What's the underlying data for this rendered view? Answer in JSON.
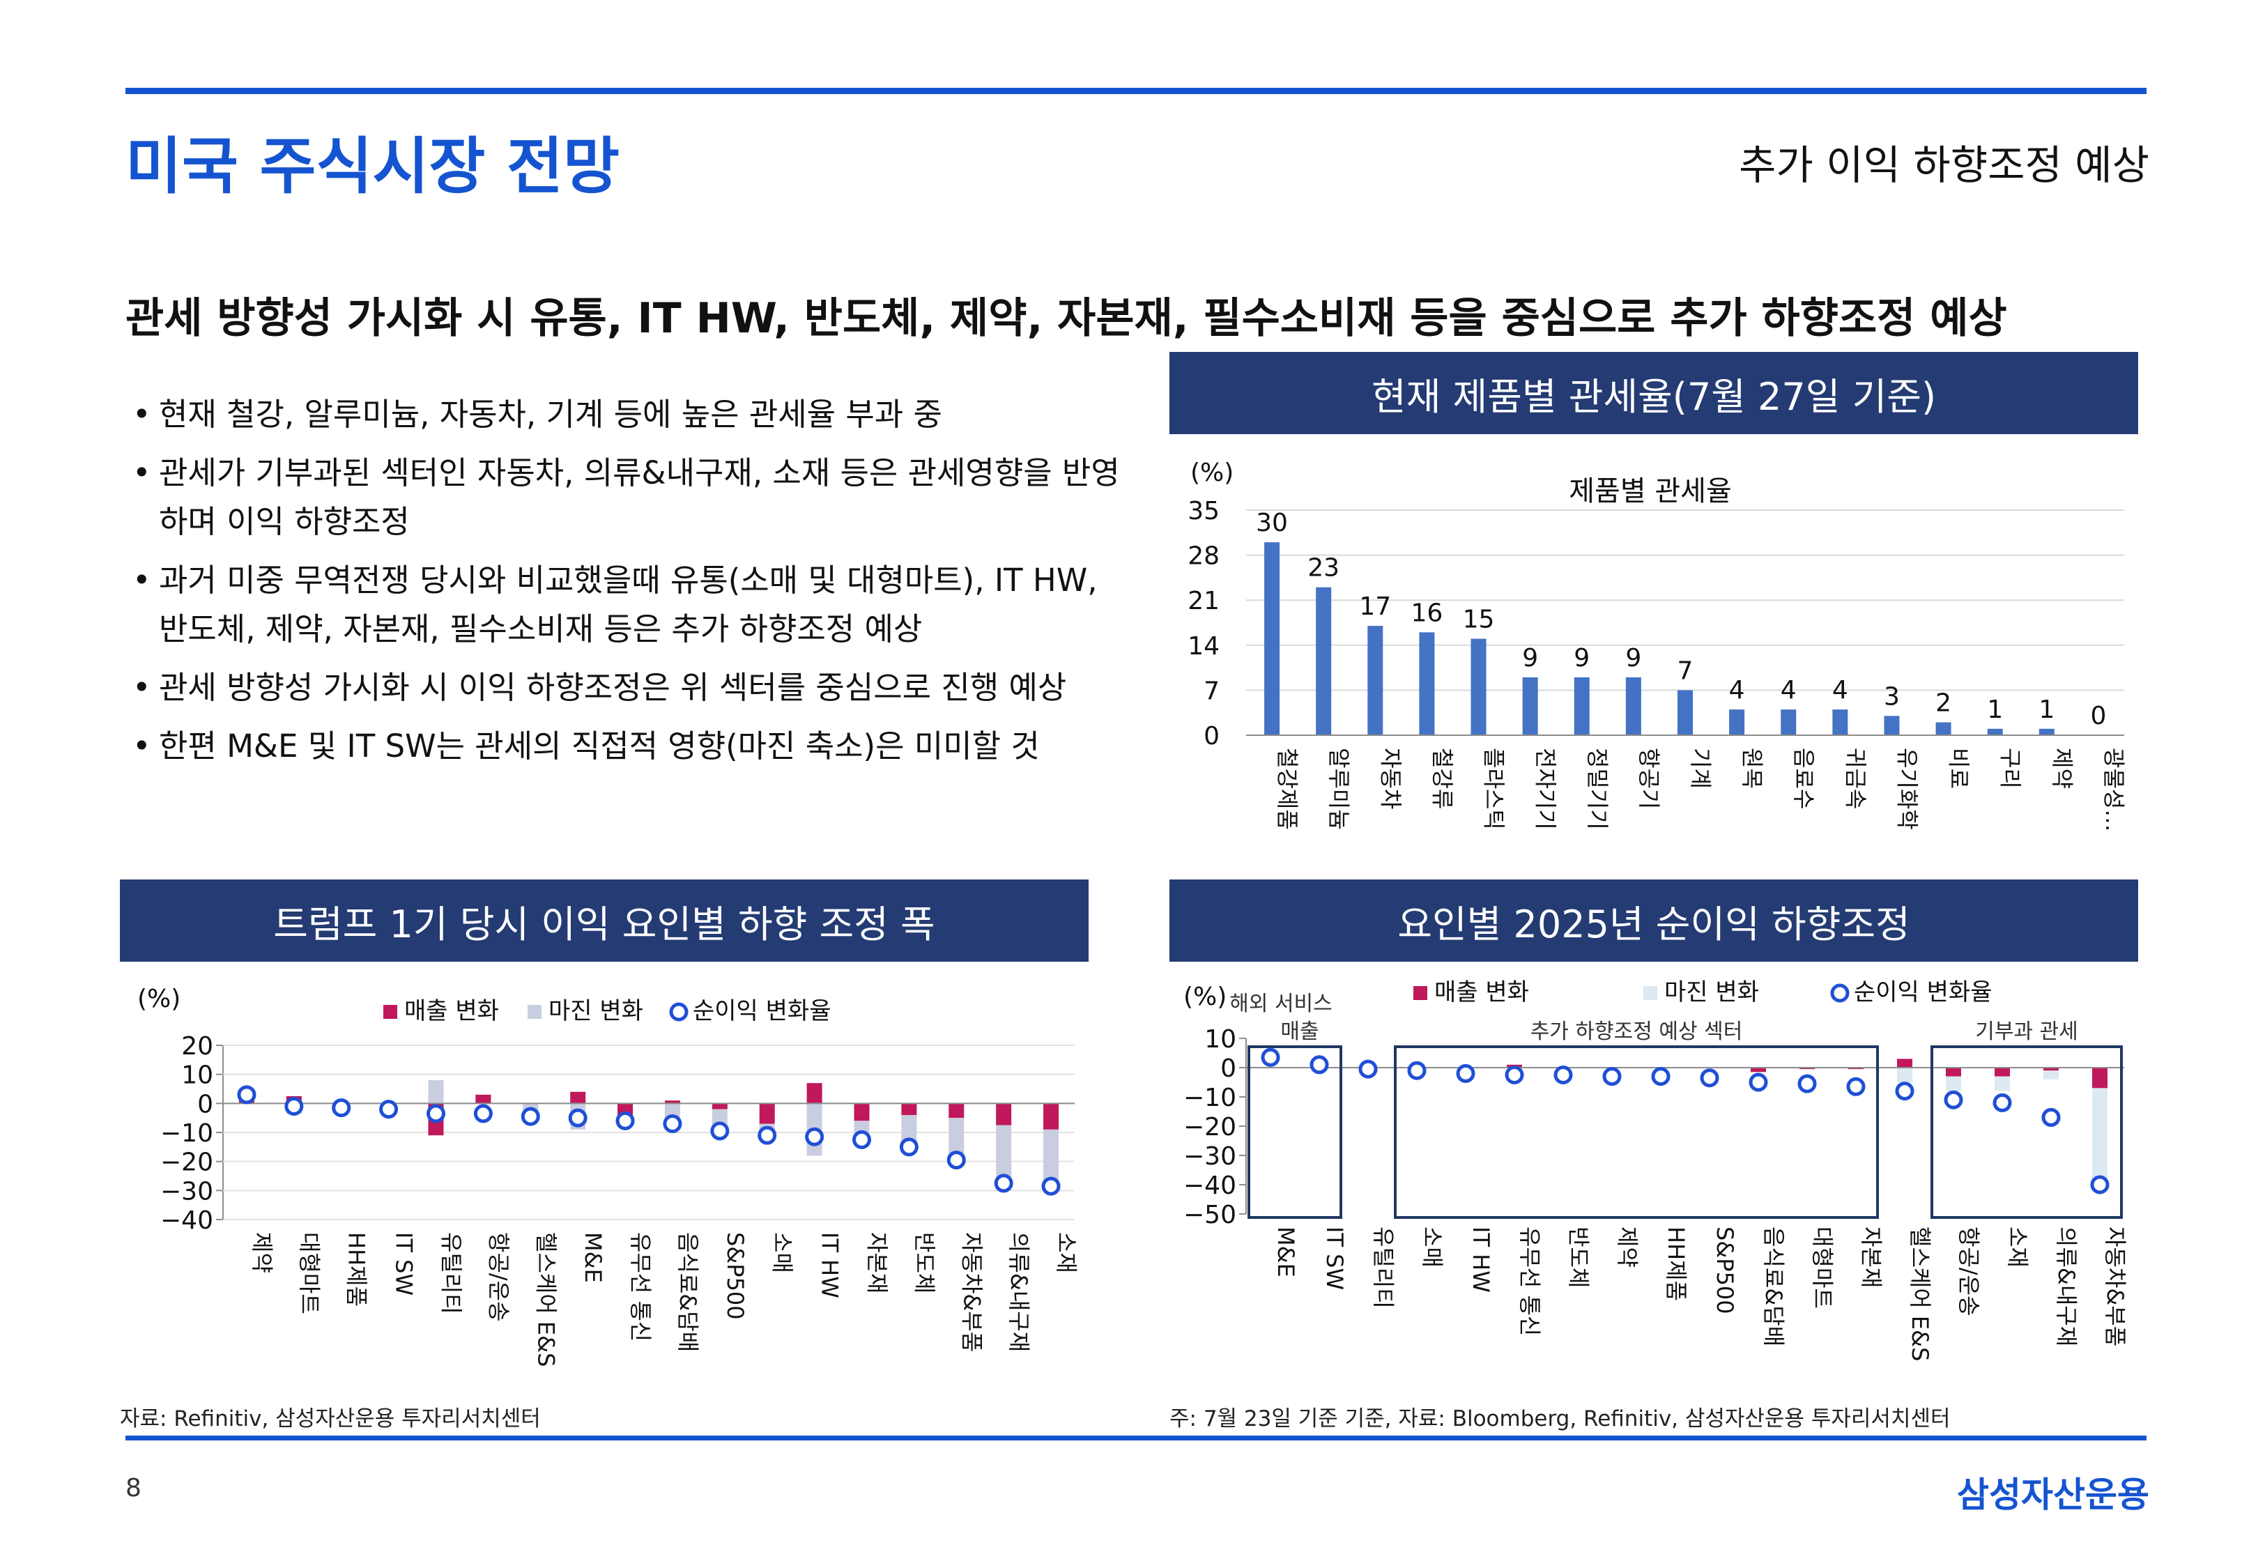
{
  "header": {
    "title": "미국 주식시장 전망",
    "subtitle": "추가 이익 하향조정 예상"
  },
  "headline": "관세 방향성 가시화 시 유통, IT HW, 반도체, 제약, 자본재, 필수소비재 등을 중심으로 추가 하향조정 예상",
  "bullets": [
    "현재 철강, 알루미늄, 자동차, 기계 등에 높은 관세율 부과 중",
    "관세가 기부과된 섹터인 자동차, 의류&내구재, 소재 등은 관세영향을 반영하며 이익 하향조정",
    "과거 미중 무역전쟁 당시와 비교했을때 유통(소매 및 대형마트), IT HW, 반도체, 제약, 자본재, 필수소비재 등은 추가 하향조정 예상",
    "관세 방향성 가시화 시 이익 하향조정은 위 섹터를 중심으로 진행 예상",
    "한편 M&E 및 IT SW는 관세의 직접적 영향(마진 축소)은 미미할 것"
  ],
  "panels": {
    "tariff_head": "현재 제품별 관세율(7월 27일 기준)",
    "trump_head": "트럼프 1기 당시 이익 요인별 하향 조정 폭",
    "factor_head": "요인별 2025년 순이익 하향조정"
  },
  "sources": {
    "left": "자료: Refinitiv, 삼성자산운용 투자리서치센터",
    "right": "주: 7월 23일 기준 기준, 자료: Bloomberg, Refinitiv, 삼성자산운용 투자리서치센터"
  },
  "footer": {
    "page": "8",
    "logo": "삼성자산운용"
  },
  "colors": {
    "brand_blue": "#1554d1",
    "panel_navy": "#243b73",
    "bar_blue": "#4472c4",
    "sales_magenta": "#c0185a",
    "margin_gray": "#c9cde0",
    "margin_lightblue": "#dce9f2",
    "net_circle": "#1f4fd6",
    "box_navy": "#1f3864"
  },
  "chart_data": [
    {
      "type": "bar",
      "title": "제품별 관세율",
      "unit_label": "(%)",
      "ylim": [
        0,
        35
      ],
      "yticks": [
        0,
        7,
        14,
        21,
        28,
        35
      ],
      "grid": true,
      "categories": [
        "철강제품",
        "알루미늄",
        "자동차",
        "철강류",
        "플라스틱",
        "전자기기",
        "정밀기기",
        "항공기",
        "기계",
        "원목",
        "음료수",
        "귀금속",
        "유기화학",
        "비료",
        "구리",
        "제약",
        "광물성…"
      ],
      "values": [
        30,
        23,
        17,
        16,
        15,
        9,
        9,
        9,
        7,
        4,
        4,
        4,
        3,
        2,
        1,
        1,
        0
      ],
      "value_labels": [
        "30",
        "23",
        "17",
        "16",
        "15",
        "9",
        "9",
        "9",
        "7",
        "4",
        "4",
        "4",
        "3",
        "2",
        "1",
        "1",
        "0"
      ]
    },
    {
      "type": "bar",
      "title": "",
      "unit_label": "(%)",
      "ylim": [
        -40,
        20
      ],
      "yticks": [
        20,
        10,
        0,
        -10,
        -20,
        -30,
        -40
      ],
      "grid": true,
      "legend": [
        "매출 변화",
        "마진 변화",
        "순이익 변화율"
      ],
      "legend_position": "top",
      "categories": [
        "제약",
        "대형마트",
        "HH제품",
        "IT SW",
        "유틸리티",
        "항공/운송",
        "헬스케어 E&S",
        "M&E",
        "유무선 통신",
        "음식료&담배",
        "S&P500",
        "소매",
        "IT HW",
        "자본재",
        "반도체",
        "자동차&부품",
        "의류&내구재",
        "소재"
      ],
      "series": [
        {
          "name": "매출 변화",
          "values": [
            1.5,
            2.5,
            0.5,
            0,
            -11,
            3,
            0,
            4,
            -4,
            1,
            -2,
            -7,
            7,
            -6,
            -4,
            -5,
            -7.5,
            -9
          ]
        },
        {
          "name": "마진 변화",
          "values": [
            1.5,
            -3.5,
            -2,
            -1.5,
            8,
            0,
            -3.5,
            -9,
            -2.5,
            -7.5,
            -7,
            -4,
            -18,
            -6,
            -10,
            -15,
            -20,
            -20
          ]
        },
        {
          "name": "순이익 변화율",
          "values": [
            3,
            -1,
            -1.5,
            -2,
            -3.5,
            -3.5,
            -4.5,
            -5,
            -6,
            -7,
            -9.5,
            -11,
            -11.5,
            -12.5,
            -15,
            -19.5,
            -27.5,
            -28.5
          ]
        }
      ]
    },
    {
      "type": "bar",
      "title": "",
      "unit_label": "(%)",
      "ylim": [
        -50,
        10
      ],
      "yticks": [
        10,
        0,
        -10,
        -20,
        -30,
        -40,
        -50
      ],
      "grid": true,
      "legend": [
        "매출 변화",
        "마진 변화",
        "순이익 변화율"
      ],
      "legend_position": "top",
      "group_labels": [
        "해외 서비스\n매출",
        "추가 하향조정 예상 섹터",
        "기부과 관세"
      ],
      "categories": [
        "M&E",
        "IT SW",
        "유틸리티",
        "소매",
        "IT HW",
        "유무선 통신",
        "반도체",
        "제약",
        "HH제품",
        "S&P500",
        "음식료&담배",
        "대형마트",
        "자본재",
        "헬스케어 E&S",
        "항공/운송",
        "소재",
        "의류&내구재",
        "자동차&부품"
      ],
      "series": [
        {
          "name": "매출 변화",
          "values": [
            0,
            0,
            0,
            0,
            0,
            1,
            0,
            0,
            0,
            0,
            -1.5,
            -0.5,
            -0.5,
            3,
            -3,
            -3,
            -1,
            -7
          ]
        },
        {
          "name": "마진 변화",
          "values": [
            0,
            0,
            0,
            0,
            0,
            0,
            0,
            0,
            0,
            0,
            0,
            0,
            0,
            -5,
            -5,
            -5,
            -3,
            -33
          ]
        },
        {
          "name": "순이익 변화율",
          "values": [
            3.5,
            1,
            -0.5,
            -1,
            -2,
            -2.5,
            -2.5,
            -3,
            -3,
            -3.5,
            -5,
            -5.5,
            -6.5,
            -8,
            -11,
            -12,
            -17,
            -40
          ]
        }
      ]
    }
  ]
}
